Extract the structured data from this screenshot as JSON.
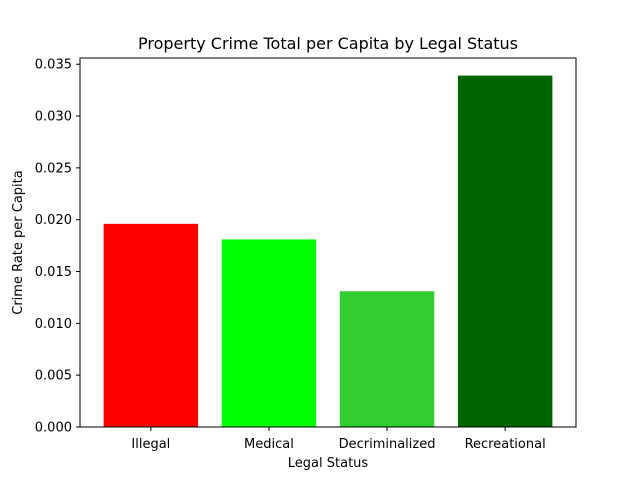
{
  "chart_data": {
    "type": "bar",
    "title": "Property Crime Total per Capita by Legal Status",
    "xlabel": "Legal Status",
    "ylabel": "Crime Rate per Capita",
    "categories": [
      "Illegal",
      "Medical",
      "Decriminalized",
      "Recreational"
    ],
    "values": [
      0.0196,
      0.0181,
      0.0131,
      0.0339
    ],
    "colors": [
      "#ff0000",
      "#00ff00",
      "#32cd32",
      "#006400"
    ],
    "ylim": [
      0,
      0.0356
    ],
    "yticks": [
      "0.000",
      "0.005",
      "0.010",
      "0.015",
      "0.020",
      "0.025",
      "0.030",
      "0.035"
    ],
    "ytick_values": [
      0,
      0.005,
      0.01,
      0.015,
      0.02,
      0.025,
      0.03,
      0.035
    ],
    "grid": false,
    "legend": "none"
  }
}
